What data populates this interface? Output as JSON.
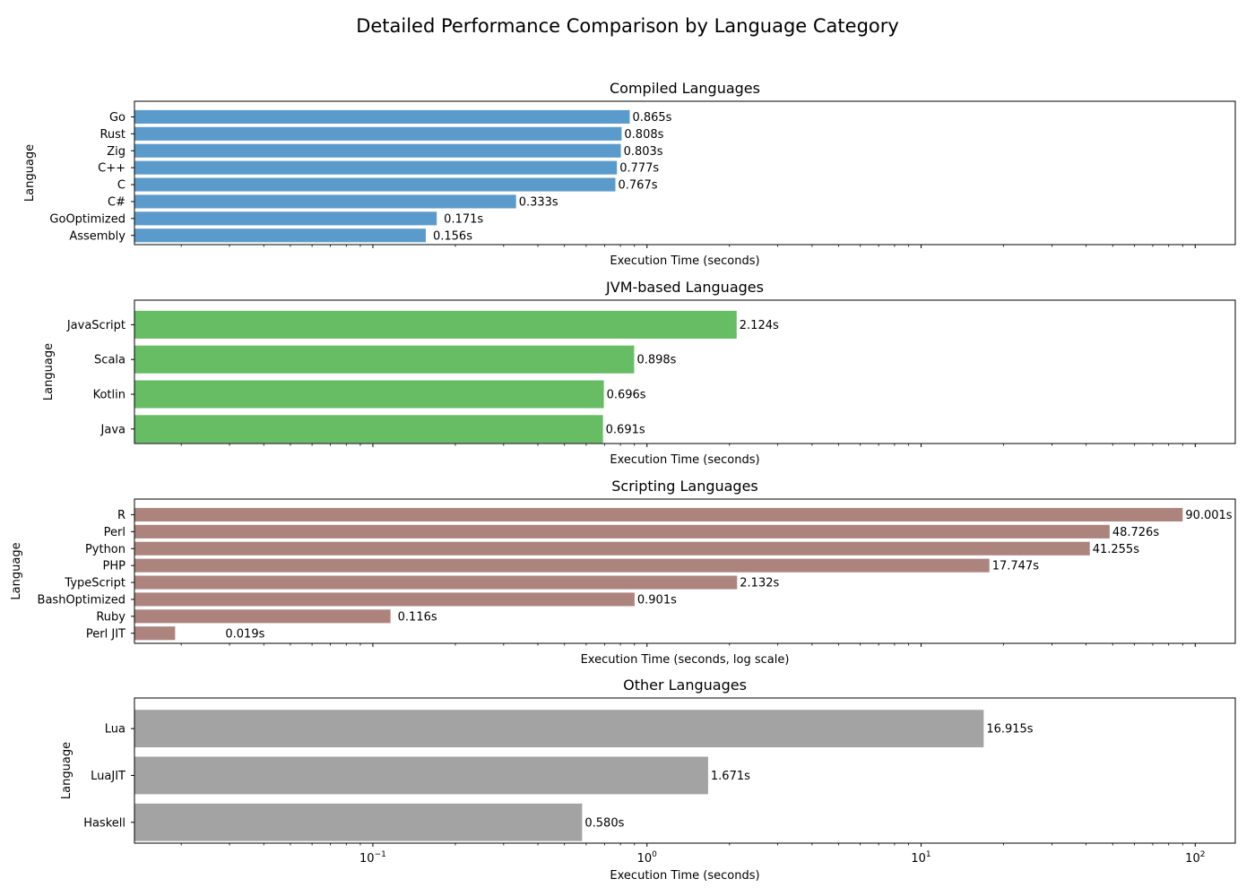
{
  "figure": {
    "title": "Detailed Performance Comparison by Language Category",
    "x_tick_labels": [
      {
        "base": "10",
        "exp": "−1",
        "value": 0.1
      },
      {
        "base": "10",
        "exp": "0",
        "value": 1
      },
      {
        "base": "10",
        "exp": "1",
        "value": 10
      },
      {
        "base": "10",
        "exp": "2",
        "value": 100
      }
    ]
  },
  "chart_data": [
    {
      "type": "bar",
      "orientation": "horizontal",
      "title": "Compiled Languages",
      "xlabel": "Execution Time (seconds)",
      "ylabel": "Language",
      "xscale": "log",
      "xlim": [
        0.0135,
        140
      ],
      "color": "#5b9bcb",
      "categories": [
        "Go",
        "Rust",
        "Zig",
        "C++",
        "C",
        "C#",
        "GoOptimized",
        "Assembly"
      ],
      "values": [
        0.865,
        0.808,
        0.803,
        0.777,
        0.767,
        0.333,
        0.171,
        0.156
      ],
      "labels": [
        "0.865s",
        "0.808s",
        "0.803s",
        "0.777s",
        "0.767s",
        "0.333s",
        "0.171s",
        "0.156s"
      ]
    },
    {
      "type": "bar",
      "orientation": "horizontal",
      "title": "JVM-based Languages",
      "xlabel": "Execution Time (seconds)",
      "ylabel": "Language",
      "xscale": "log",
      "xlim": [
        0.0135,
        140
      ],
      "color": "#66bd63",
      "categories": [
        "JavaScript",
        "Scala",
        "Kotlin",
        "Java"
      ],
      "values": [
        2.124,
        0.898,
        0.696,
        0.691
      ],
      "labels": [
        "2.124s",
        "0.898s",
        "0.696s",
        "0.691s"
      ]
    },
    {
      "type": "bar",
      "orientation": "horizontal",
      "title": "Scripting Languages",
      "xlabel": "Execution Time (seconds, log scale)",
      "ylabel": "Language",
      "xscale": "log",
      "xlim": [
        0.0135,
        140
      ],
      "color": "#ad847d",
      "categories": [
        "R",
        "Perl",
        "Python",
        "PHP",
        "TypeScript",
        "BashOptimized",
        "Ruby",
        "Perl JIT"
      ],
      "values": [
        90.001,
        48.726,
        41.255,
        17.747,
        2.132,
        0.901,
        0.116,
        0.019
      ],
      "labels": [
        "90.001s",
        "48.726s",
        "41.255s",
        "17.747s",
        "2.132s",
        "0.901s",
        "0.116s",
        "0.019s"
      ]
    },
    {
      "type": "bar",
      "orientation": "horizontal",
      "title": "Other Languages",
      "xlabel": "Execution Time (seconds)",
      "ylabel": "Language",
      "xscale": "log",
      "xlim": [
        0.0135,
        140
      ],
      "color": "#a3a3a3",
      "categories": [
        "Lua",
        "LuaJIT",
        "Haskell"
      ],
      "values": [
        16.915,
        1.671,
        0.58
      ],
      "labels": [
        "16.915s",
        "1.671s",
        "0.580s"
      ]
    }
  ]
}
